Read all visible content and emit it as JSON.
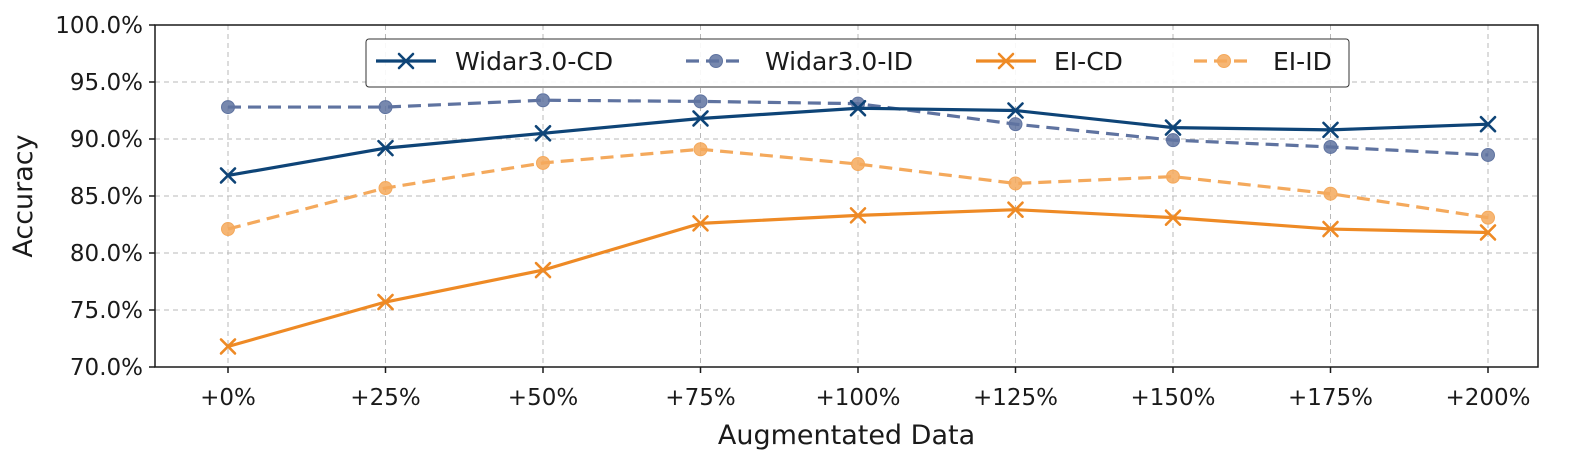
{
  "chart_data": {
    "type": "line",
    "title": "",
    "xlabel": "Augmentated Data",
    "ylabel": "Accuracy",
    "categories": [
      "+0%",
      "+25%",
      "+50%",
      "+75%",
      "+100%",
      "+125%",
      "+150%",
      "+175%",
      "+200%"
    ],
    "ylim": [
      70.0,
      100.0
    ],
    "yticks": [
      "70.0%",
      "75.0%",
      "80.0%",
      "85.0%",
      "90.0%",
      "95.0%",
      "100.0%"
    ],
    "grid": true,
    "legend_position": "top-center",
    "series": [
      {
        "name": "Widar3.0-CD",
        "values": [
          86.8,
          89.2,
          90.5,
          91.8,
          92.7,
          92.5,
          91.0,
          90.8,
          91.3
        ],
        "color": "#0e4477",
        "style": "solid",
        "marker": "x"
      },
      {
        "name": "Widar3.0-ID",
        "values": [
          92.8,
          92.8,
          93.4,
          93.3,
          93.1,
          91.3,
          89.9,
          89.3,
          88.6
        ],
        "color": "#5f73a0",
        "style": "dashed",
        "marker": "circle"
      },
      {
        "name": "EI-CD",
        "values": [
          71.8,
          75.7,
          78.5,
          82.6,
          83.3,
          83.8,
          83.1,
          82.1,
          81.8
        ],
        "color": "#ee8a25",
        "style": "solid",
        "marker": "x"
      },
      {
        "name": "EI-ID",
        "values": [
          82.1,
          85.7,
          87.9,
          89.1,
          87.8,
          86.1,
          86.7,
          85.2,
          83.1
        ],
        "color": "#f4a95c",
        "style": "dashed",
        "marker": "circle"
      }
    ]
  }
}
